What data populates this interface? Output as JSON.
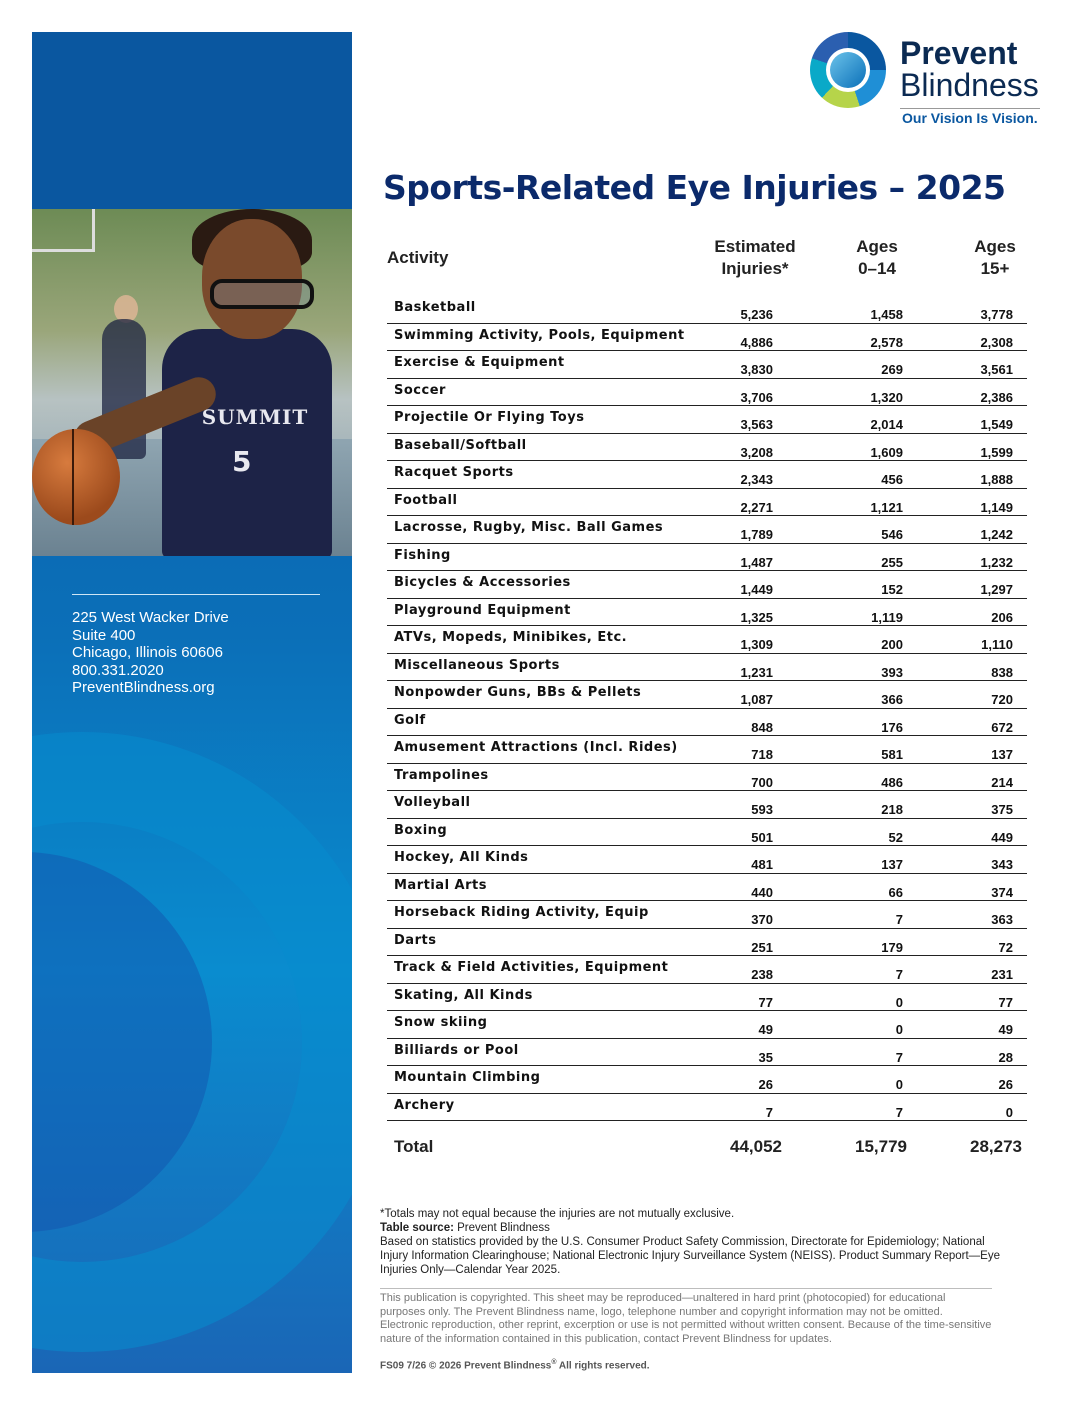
{
  "organization": {
    "name_line1": "Prevent",
    "name_line2": "Blindness",
    "tagline": "Our Vision Is Vision."
  },
  "photo": {
    "jersey_text": "SUMMIT",
    "jersey_number": "5"
  },
  "address": {
    "street": "225 West Wacker Drive",
    "suite": "Suite 400",
    "city": "Chicago, Illinois 60606",
    "phone": "800.331.2020",
    "website": "PreventBlindness.org"
  },
  "title": "Sports-Related Eye Injuries – 2025",
  "table": {
    "headers": {
      "activity": "Activity",
      "estimated_line1": "Estimated",
      "estimated_line2": "Injuries*",
      "ages1_line1": "Ages",
      "ages1_line2": "0–14",
      "ages2_line1": "Ages",
      "ages2_line2": "15+"
    },
    "rows": [
      {
        "activity": "Basketball",
        "estimated": "5,236",
        "ages_0_14": "1,458",
        "ages_15_plus": "3,778"
      },
      {
        "activity": "Swimming Activity, Pools, Equipment",
        "estimated": "4,886",
        "ages_0_14": "2,578",
        "ages_15_plus": "2,308"
      },
      {
        "activity": "Exercise & Equipment",
        "estimated": "3,830",
        "ages_0_14": "269",
        "ages_15_plus": "3,561"
      },
      {
        "activity": "Soccer",
        "estimated": "3,706",
        "ages_0_14": "1,320",
        "ages_15_plus": "2,386"
      },
      {
        "activity": "Projectile Or Flying Toys",
        "estimated": "3,563",
        "ages_0_14": "2,014",
        "ages_15_plus": "1,549"
      },
      {
        "activity": "Baseball/Softball",
        "estimated": "3,208",
        "ages_0_14": "1,609",
        "ages_15_plus": "1,599"
      },
      {
        "activity": "Racquet Sports",
        "estimated": "2,343",
        "ages_0_14": "456",
        "ages_15_plus": "1,888"
      },
      {
        "activity": "Football",
        "estimated": "2,271",
        "ages_0_14": "1,121",
        "ages_15_plus": "1,149"
      },
      {
        "activity": "Lacrosse, Rugby, Misc. Ball Games",
        "estimated": "1,789",
        "ages_0_14": "546",
        "ages_15_plus": "1,242"
      },
      {
        "activity": "Fishing",
        "estimated": "1,487",
        "ages_0_14": "255",
        "ages_15_plus": "1,232"
      },
      {
        "activity": "Bicycles & Accessories",
        "estimated": "1,449",
        "ages_0_14": "152",
        "ages_15_plus": "1,297"
      },
      {
        "activity": "Playground Equipment",
        "estimated": "1,325",
        "ages_0_14": "1,119",
        "ages_15_plus": "206"
      },
      {
        "activity": "ATVs, Mopeds, Minibikes, Etc.",
        "estimated": "1,309",
        "ages_0_14": "200",
        "ages_15_plus": "1,110"
      },
      {
        "activity": "Miscellaneous Sports",
        "estimated": "1,231",
        "ages_0_14": "393",
        "ages_15_plus": "838"
      },
      {
        "activity": "Nonpowder Guns, BBs & Pellets",
        "estimated": "1,087",
        "ages_0_14": "366",
        "ages_15_plus": "720"
      },
      {
        "activity": "Golf",
        "estimated": "848",
        "ages_0_14": "176",
        "ages_15_plus": "672"
      },
      {
        "activity": "Amusement Attractions (Incl. Rides)",
        "estimated": "718",
        "ages_0_14": "581",
        "ages_15_plus": "137"
      },
      {
        "activity": "Trampolines",
        "estimated": "700",
        "ages_0_14": "486",
        "ages_15_plus": "214"
      },
      {
        "activity": "Volleyball",
        "estimated": "593",
        "ages_0_14": "218",
        "ages_15_plus": "375"
      },
      {
        "activity": "Boxing",
        "estimated": "501",
        "ages_0_14": "52",
        "ages_15_plus": "449"
      },
      {
        "activity": "Hockey, All Kinds",
        "estimated": "481",
        "ages_0_14": "137",
        "ages_15_plus": "343"
      },
      {
        "activity": "Martial Arts",
        "estimated": "440",
        "ages_0_14": "66",
        "ages_15_plus": "374"
      },
      {
        "activity": "Horseback Riding Activity, Equip",
        "estimated": "370",
        "ages_0_14": "7",
        "ages_15_plus": "363"
      },
      {
        "activity": "Darts",
        "estimated": "251",
        "ages_0_14": "179",
        "ages_15_plus": "72"
      },
      {
        "activity": "Track & Field Activities, Equipment",
        "estimated": "238",
        "ages_0_14": "7",
        "ages_15_plus": "231"
      },
      {
        "activity": "Skating, All Kinds",
        "estimated": "77",
        "ages_0_14": "0",
        "ages_15_plus": "77"
      },
      {
        "activity": "Snow skiing",
        "estimated": "49",
        "ages_0_14": "0",
        "ages_15_plus": "49"
      },
      {
        "activity": "Billiards or Pool",
        "estimated": "35",
        "ages_0_14": "7",
        "ages_15_plus": "28"
      },
      {
        "activity": "Mountain Climbing",
        "estimated": "26",
        "ages_0_14": "0",
        "ages_15_plus": "26"
      },
      {
        "activity": "Archery",
        "estimated": "7",
        "ages_0_14": "7",
        "ages_15_plus": "0"
      }
    ],
    "total": {
      "label": "Total",
      "estimated": "44,052",
      "ages_0_14": "15,779",
      "ages_15_plus": "28,273"
    }
  },
  "notes": {
    "footnote": "*Totals may not equal because the injuries are not mutually exclusive.",
    "source_label": "Table source:",
    "source_value": "Prevent Blindness",
    "based_on": "Based on statistics provided by the U.S. Consumer Product Safety Commission, Directorate for Epidemiology; National Injury Information Clearinghouse; National Electronic Injury Surveillance System (NEISS). Product Summary Report—Eye Injuries Only—Calendar Year 2025."
  },
  "copyright_text": "This publication is copyrighted. This sheet may be reproduced—unaltered in hard print (photocopied) for educational purposes only. The Prevent Blindness name, logo, telephone number and copyright information may not be omitted. Electronic reproduction, other reprint, excerption or use is not permitted without written consent. Because of the time-sensitive nature of the information contained in this publication, contact Prevent Blindness for updates.",
  "footer": {
    "prefix": "FS09 7/26 © 2026 Prevent Blindness",
    "reg": "®",
    "suffix": " All rights reserved."
  }
}
